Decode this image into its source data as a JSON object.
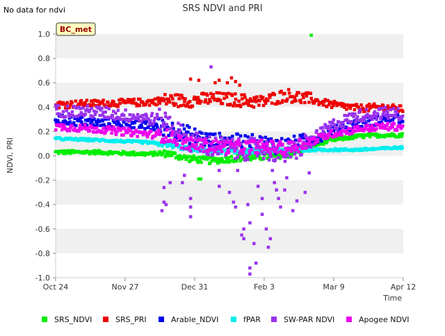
{
  "chart_data": {
    "type": "scatter",
    "title": "SRS NDVI and PRI",
    "note": "No data for ndvi",
    "badge": "BC_met",
    "xlabel": "Time",
    "ylabel": "NDVI, PRI",
    "x_ticks": [
      "Oct 24",
      "Nov 27",
      "Dec 31",
      "Feb 3",
      "Mar 9",
      "Apr 12"
    ],
    "x_start": "Oct 24",
    "x_end": "Apr 12",
    "ylim": [
      -1.0,
      1.0
    ],
    "y_ticks": [
      "-1.0",
      "-0.8",
      "-0.6",
      "-0.4",
      "-0.2",
      "0.0",
      "0.2",
      "0.4",
      "0.6",
      "0.8",
      "1.0"
    ],
    "grid": "horizontal bands",
    "legend_position": "bottom",
    "series": [
      {
        "name": "SRS_NDVI",
        "color": "#00ee00",
        "anchors": [
          [
            0,
            0.03
          ],
          [
            20,
            0.03
          ],
          [
            45,
            0.015
          ],
          [
            55,
            0.02
          ],
          [
            64,
            -0.02
          ],
          [
            76,
            -0.04
          ],
          [
            88,
            -0.02
          ],
          [
            100,
            -0.01
          ],
          [
            113,
            0.01
          ],
          [
            125,
            0.08
          ],
          [
            135,
            0.13
          ],
          [
            148,
            0.16
          ],
          [
            160,
            0.17
          ],
          [
            170,
            0.17
          ]
        ],
        "spread": 0.015
      },
      {
        "name": "SRS_PRI",
        "color": "#ee0000",
        "anchors": [
          [
            0,
            0.42
          ],
          [
            20,
            0.43
          ],
          [
            45,
            0.44
          ],
          [
            55,
            0.46
          ],
          [
            64,
            0.45
          ],
          [
            76,
            0.47
          ],
          [
            88,
            0.46
          ],
          [
            100,
            0.44
          ],
          [
            113,
            0.5
          ],
          [
            125,
            0.46
          ],
          [
            135,
            0.42
          ],
          [
            148,
            0.39
          ],
          [
            160,
            0.4
          ],
          [
            170,
            0.38
          ]
        ],
        "spread": 0.03
      },
      {
        "name": "Arable_NDVI",
        "color": "#0000ee",
        "anchors": [
          [
            0,
            0.3
          ],
          [
            20,
            0.27
          ],
          [
            45,
            0.25
          ],
          [
            55,
            0.23
          ],
          [
            64,
            0.18
          ],
          [
            76,
            0.12
          ],
          [
            88,
            0.11
          ],
          [
            100,
            0.1
          ],
          [
            113,
            0.08
          ],
          [
            125,
            0.12
          ],
          [
            135,
            0.2
          ],
          [
            148,
            0.27
          ],
          [
            160,
            0.3
          ],
          [
            170,
            0.3
          ]
        ],
        "spread": 0.04
      },
      {
        "name": "fPAR",
        "color": "#00eeee",
        "anchors": [
          [
            0,
            0.14
          ],
          [
            20,
            0.13
          ],
          [
            45,
            0.11
          ],
          [
            55,
            0.09
          ],
          [
            64,
            0.06
          ],
          [
            76,
            0.04
          ],
          [
            88,
            0.03
          ],
          [
            100,
            0.04
          ],
          [
            113,
            0.05
          ],
          [
            125,
            0.05
          ],
          [
            135,
            0.05
          ],
          [
            148,
            0.05
          ],
          [
            160,
            0.06
          ],
          [
            170,
            0.07
          ]
        ],
        "spread": 0.01
      },
      {
        "name": "SW-PAR NDVI",
        "color": "#9933ee",
        "anchors": [
          [
            0,
            0.37
          ],
          [
            20,
            0.36
          ],
          [
            45,
            0.31
          ],
          [
            55,
            0.28
          ],
          [
            64,
            0.12
          ],
          [
            76,
            0.08
          ],
          [
            88,
            0.05
          ],
          [
            100,
            0.06
          ],
          [
            113,
            0.02
          ],
          [
            125,
            0.12
          ],
          [
            135,
            0.25
          ],
          [
            148,
            0.33
          ],
          [
            160,
            0.35
          ],
          [
            170,
            0.34
          ]
        ],
        "spread": 0.05
      },
      {
        "name": "Apogee NDVI",
        "color": "#ee00ee",
        "anchors": [
          [
            0,
            0.24
          ],
          [
            20,
            0.22
          ],
          [
            45,
            0.18
          ],
          [
            55,
            0.16
          ],
          [
            64,
            0.1
          ],
          [
            76,
            0.08
          ],
          [
            88,
            0.07
          ],
          [
            100,
            0.08
          ],
          [
            113,
            0.06
          ],
          [
            125,
            0.12
          ],
          [
            135,
            0.18
          ],
          [
            148,
            0.22
          ],
          [
            160,
            0.24
          ],
          [
            170,
            0.24
          ]
        ],
        "spread": 0.03
      }
    ],
    "outliers": [
      {
        "series": "SW-PAR NDVI",
        "points": [
          [
            52,
            -0.45
          ],
          [
            53,
            -0.38
          ],
          [
            53,
            -0.26
          ],
          [
            56,
            -0.22
          ],
          [
            54,
            -0.4
          ],
          [
            62,
            -0.22
          ],
          [
            63,
            -0.16
          ],
          [
            66,
            -0.35
          ],
          [
            66,
            -0.42
          ],
          [
            66,
            -0.5
          ],
          [
            76,
            0.73
          ],
          [
            80,
            -0.12
          ],
          [
            80,
            -0.25
          ],
          [
            85,
            -0.3
          ],
          [
            87,
            -0.38
          ],
          [
            88,
            -0.42
          ],
          [
            89,
            -0.12
          ],
          [
            91,
            -0.65
          ],
          [
            92,
            -0.6
          ],
          [
            92,
            -0.68
          ],
          [
            94,
            -0.4
          ],
          [
            95,
            -0.55
          ],
          [
            95,
            -0.92
          ],
          [
            95,
            -0.97
          ],
          [
            97,
            -0.72
          ],
          [
            98,
            -0.88
          ],
          [
            99,
            -0.25
          ],
          [
            101,
            -0.35
          ],
          [
            101,
            -0.48
          ],
          [
            103,
            -0.6
          ],
          [
            104,
            -0.75
          ],
          [
            105,
            -0.68
          ],
          [
            106,
            -0.12
          ],
          [
            107,
            -0.22
          ],
          [
            108,
            -0.28
          ],
          [
            109,
            -0.35
          ],
          [
            110,
            -0.42
          ],
          [
            112,
            -0.28
          ],
          [
            113,
            -0.18
          ],
          [
            116,
            -0.45
          ],
          [
            118,
            -0.37
          ],
          [
            122,
            -0.3
          ],
          [
            124,
            -0.14
          ]
        ]
      },
      {
        "series": "SRS_PRI",
        "points": [
          [
            78,
            0.6
          ],
          [
            80,
            0.62
          ],
          [
            84,
            0.6
          ],
          [
            86,
            0.64
          ],
          [
            88,
            0.61
          ],
          [
            90,
            0.58
          ],
          [
            66,
            0.63
          ],
          [
            70,
            0.62
          ]
        ]
      },
      {
        "series": "SRS_NDVI",
        "points": [
          [
            125,
            0.99
          ],
          [
            70,
            -0.19
          ],
          [
            71,
            -0.19
          ]
        ]
      }
    ]
  },
  "legend": [
    {
      "label": "SRS_NDVI",
      "color": "#00ee00"
    },
    {
      "label": "SRS_PRI",
      "color": "#ee0000"
    },
    {
      "label": "Arable_NDVI",
      "color": "#0000ee"
    },
    {
      "label": "fPAR",
      "color": "#00eeee"
    },
    {
      "label": "SW-PAR NDVI",
      "color": "#9933ee"
    },
    {
      "label": "Apogee NDVI",
      "color": "#ee00ee"
    }
  ]
}
